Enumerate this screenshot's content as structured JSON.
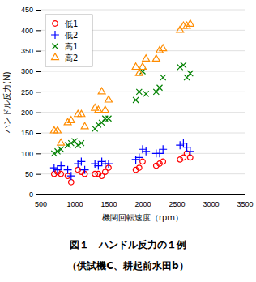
{
  "chart_data": {
    "type": "scatter",
    "title": "図１　ハンドル反力の１例",
    "subtitle": "（供試機C、耕起前水田b）",
    "x_label": "機関回転速度（rpm）",
    "y_label": "ハンドル反力(N)",
    "xlim": [
      500,
      3500
    ],
    "ylim": [
      0,
      450
    ],
    "xticks": [
      500,
      1000,
      1500,
      2000,
      2500,
      3000,
      3500
    ],
    "yticks": [
      0,
      50,
      100,
      150,
      200,
      250,
      300,
      350,
      400,
      450
    ],
    "grid": "y",
    "legend": "upper left",
    "series": [
      {
        "name": "低1",
        "color": "#FF0000",
        "marker": "circle-open",
        "x": [
          700,
          750,
          800,
          900,
          950,
          1050,
          1100,
          1150,
          1300,
          1350,
          1400,
          1450,
          1500,
          1900,
          1950,
          2000,
          2200,
          2250,
          2300,
          2550,
          2600,
          2650,
          2700
        ],
        "values": [
          50,
          55,
          50,
          45,
          30,
          60,
          55,
          50,
          50,
          50,
          45,
          55,
          65,
          60,
          65,
          80,
          70,
          75,
          80,
          85,
          90,
          100,
          90
        ]
      },
      {
        "name": "低2",
        "color": "#0000FF",
        "marker": "plus",
        "x": [
          700,
          750,
          800,
          900,
          950,
          1050,
          1100,
          1150,
          1300,
          1350,
          1400,
          1450,
          1500,
          1900,
          1950,
          2000,
          2050,
          2200,
          2250,
          2300,
          2550,
          2600,
          2650,
          2700
        ],
        "values": [
          65,
          60,
          70,
          60,
          45,
          75,
          80,
          60,
          75,
          70,
          80,
          75,
          75,
          85,
          90,
          110,
          105,
          100,
          100,
          110,
          120,
          125,
          115,
          105
        ]
      },
      {
        "name": "高1",
        "color": "#008000",
        "marker": "x",
        "x": [
          700,
          750,
          800,
          900,
          950,
          1000,
          1050,
          1100,
          1300,
          1350,
          1400,
          1450,
          1500,
          1900,
          1950,
          2000,
          2050,
          2200,
          2250,
          2300,
          2550,
          2600,
          2650,
          2700
        ],
        "values": [
          100,
          105,
          110,
          120,
          125,
          130,
          120,
          125,
          160,
          170,
          175,
          185,
          185,
          230,
          250,
          300,
          245,
          250,
          260,
          285,
          310,
          315,
          285,
          295
        ]
      },
      {
        "name": "高2",
        "color": "#FF8C00",
        "marker": "triangle-open",
        "x": [
          700,
          750,
          800,
          900,
          950,
          1050,
          1100,
          1150,
          1300,
          1350,
          1400,
          1450,
          1500,
          1900,
          1950,
          2000,
          2050,
          2200,
          2250,
          2300,
          2550,
          2600,
          2650,
          2700
        ],
        "values": [
          155,
          155,
          125,
          175,
          180,
          195,
          195,
          165,
          210,
          205,
          250,
          205,
          230,
          310,
          295,
          310,
          330,
          330,
          350,
          355,
          400,
          410,
          410,
          415
        ]
      }
    ]
  }
}
